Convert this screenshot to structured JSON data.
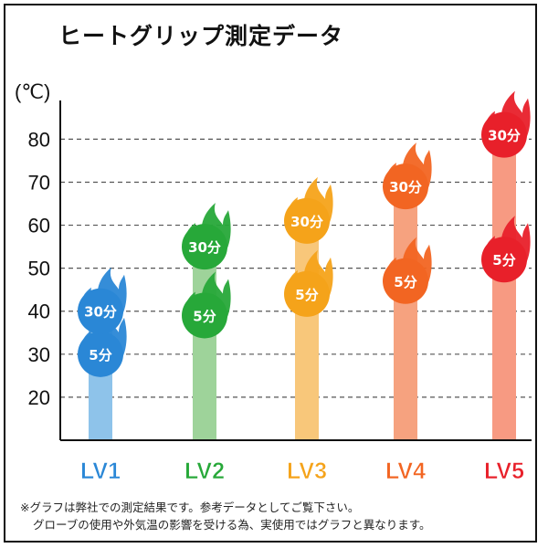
{
  "chart_data": {
    "type": "bar",
    "title": "ヒートグリップ測定データ",
    "ylabel": "(℃)",
    "xlabel": "",
    "ylim": [
      10,
      89
    ],
    "yticks": [
      20,
      30,
      40,
      50,
      60,
      70,
      80
    ],
    "grid": true,
    "categories": [
      "LV1",
      "LV2",
      "LV3",
      "LV4",
      "LV5"
    ],
    "category_colors": [
      "#2a87d6",
      "#27a839",
      "#f5a31a",
      "#f26522",
      "#e8202a"
    ],
    "bar_colors": [
      "#8ec3ea",
      "#9ed39a",
      "#f8c77a",
      "#f6a27f",
      "#f79a82"
    ],
    "series": [
      {
        "name": "5分",
        "values": [
          30,
          39,
          44,
          47,
          52
        ]
      },
      {
        "name": "30分",
        "values": [
          40,
          55,
          61,
          69,
          81
        ]
      }
    ]
  },
  "note": {
    "line1": "※グラフは弊社での測定結果です。参考データとしてご覧下さい。",
    "line2": "グローブの使用や外気温の影響を受ける為、実使用ではグラフと異なります。"
  }
}
